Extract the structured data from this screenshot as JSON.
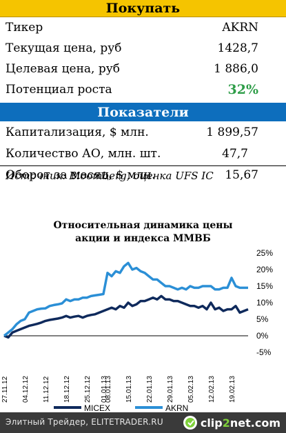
{
  "buy_header": "Покупать",
  "summary": [
    {
      "key": "Тикер",
      "value": "AKRN"
    },
    {
      "key": "Текущая цена, руб",
      "value": "1428,7"
    },
    {
      "key": "Целевая цена, руб",
      "value": "1 886,0"
    },
    {
      "key": "Потенциал роста",
      "value": "32%"
    }
  ],
  "indicators_header": "Показатели",
  "indicators": [
    {
      "key": "Капитализация, $ млн.",
      "value": "1 899,57"
    },
    {
      "key": "Количество АО, млн. шт.",
      "value": "47,7"
    },
    {
      "key": "Оборот за месяц, $ млн.",
      "value": "15,67"
    }
  ],
  "source": "Источник: Bloomberg, оценка UFS IC",
  "colors": {
    "buy_bar": "#f5c400",
    "indicators_bar": "#0d6ebd",
    "micex": "#0f2a5c",
    "akrn": "#2b8fd6",
    "growth": "#2e9d48"
  },
  "footer": {
    "credit": "Элитный Трейдер, ELITETRADER.RU",
    "logo_prefix": "clip",
    "logo_num": "2",
    "logo_suffix": "net.com",
    "logo_icon": "clip2net-logo-icon"
  },
  "chart_data": {
    "type": "line",
    "title_line1": "Относительная динамика цены",
    "title_line2": "акции и индекса ММВБ",
    "x": [
      "27.11.12",
      "28.11.12",
      "29.11.12",
      "30.11.12",
      "03.12.12",
      "04.12.12",
      "05.12.12",
      "06.12.12",
      "07.12.12",
      "10.12.12",
      "11.12.12",
      "12.12.12",
      "13.12.12",
      "14.12.12",
      "17.12.12",
      "18.12.12",
      "19.12.12",
      "20.12.12",
      "21.12.12",
      "24.12.12",
      "25.12.12",
      "26.12.12",
      "27.12.12",
      "28.12.12",
      "01.01.13",
      "08.01.13",
      "09.01.13",
      "10.01.13",
      "11.01.13",
      "14.01.13",
      "15.01.13",
      "16.01.13",
      "17.01.13",
      "18.01.13",
      "21.01.13",
      "22.01.13",
      "23.01.13",
      "24.01.13",
      "25.01.13",
      "28.01.13",
      "29.01.13",
      "30.01.13",
      "31.01.13",
      "01.02.13",
      "04.02.13",
      "05.02.13",
      "06.02.13",
      "07.02.13",
      "08.02.13",
      "11.02.13",
      "12.02.13",
      "13.02.13",
      "14.02.13",
      "15.02.13",
      "18.02.13",
      "19.02.13",
      "20.02.13",
      "21.02.13",
      "22.02.13",
      "25.02.13"
    ],
    "xtick_labels": [
      "27.11.12",
      "04.12.12",
      "11.12.12",
      "18.12.12",
      "25.12.12",
      "01.01.13",
      "08.01.13",
      "15.01.13",
      "22.01.13",
      "29.01.13",
      "05.02.13",
      "12.02.13",
      "19.02.13"
    ],
    "xtick_index": [
      0,
      5,
      10,
      15,
      20,
      24,
      25,
      30,
      35,
      40,
      45,
      50,
      55
    ],
    "series": [
      {
        "name": "MICEX",
        "values": [
          0,
          -0.5,
          1,
          1.5,
          2,
          2.5,
          3,
          3.3,
          3.6,
          4,
          4.5,
          4.8,
          5,
          5.2,
          5.5,
          6,
          5.5,
          5.8,
          6,
          5.5,
          6,
          6.3,
          6.5,
          7,
          7.5,
          8,
          8.5,
          8,
          9,
          8.5,
          10,
          9,
          9.5,
          10.5,
          10.5,
          11,
          11.5,
          11,
          12,
          11,
          11,
          10.5,
          10.5,
          10,
          9.5,
          9,
          9,
          8.5,
          9,
          8,
          10,
          8,
          8.5,
          7.5,
          8,
          8,
          9,
          7,
          7.5,
          8
        ]
      },
      {
        "name": "AKRN",
        "values": [
          0,
          1,
          2,
          3.5,
          4.5,
          5,
          7,
          7.5,
          8,
          8.2,
          8.3,
          9,
          9.3,
          9.5,
          9.8,
          11,
          10.5,
          11,
          11,
          11.5,
          11.5,
          12,
          12.2,
          12.4,
          12.6,
          19,
          18,
          19.5,
          19,
          21,
          22,
          20,
          20.5,
          19.5,
          19,
          18,
          17,
          17,
          16,
          15,
          15,
          14.5,
          14,
          14.5,
          14,
          15,
          14.5,
          14.5,
          15,
          15,
          15,
          14,
          14,
          14.5,
          14.5,
          17.5,
          15,
          14.5,
          14.5,
          14.5
        ]
      }
    ],
    "ylim": [
      -5,
      25
    ],
    "yticks": [
      "-5%",
      "0%",
      "5%",
      "10%",
      "15%",
      "20%",
      "25%"
    ],
    "ytick_values": [
      -5,
      0,
      5,
      10,
      15,
      20,
      25
    ],
    "legend_position": "bottom"
  }
}
